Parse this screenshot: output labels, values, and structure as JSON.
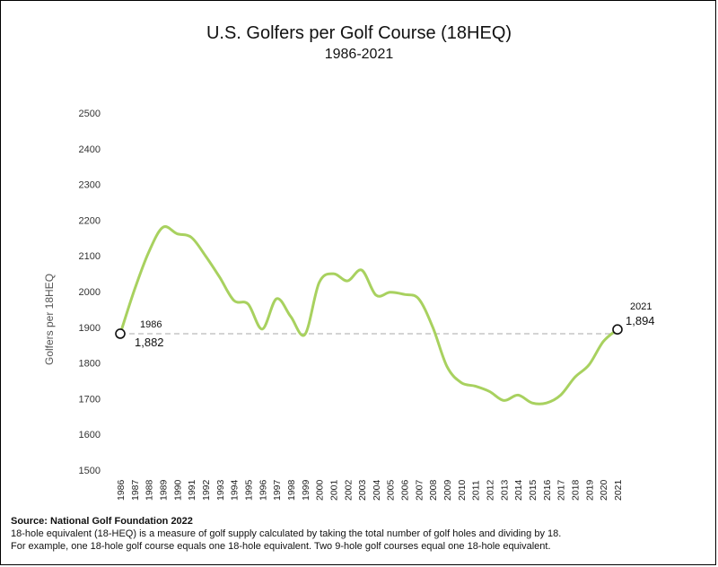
{
  "chart_data": {
    "type": "line",
    "title": "U.S. Golfers per Golf Course (18HEQ)",
    "subtitle": "1986-2021",
    "xlabel": "",
    "ylabel": "Golfers per 18HEQ",
    "ylim": [
      1500,
      2500
    ],
    "yticks": [
      "1500",
      "1600",
      "1700",
      "1800",
      "1900",
      "2000",
      "2100",
      "2200",
      "2300",
      "2400",
      "2500"
    ],
    "grid": false,
    "x": [
      "1986",
      "1987",
      "1988",
      "1989",
      "1990",
      "1991",
      "1992",
      "1993",
      "1994",
      "1995",
      "1996",
      "1997",
      "1998",
      "1999",
      "2000",
      "2001",
      "2002",
      "2003",
      "2004",
      "2005",
      "2006",
      "2007",
      "2008",
      "2009",
      "2010",
      "2011",
      "2012",
      "2013",
      "2014",
      "2015",
      "2016",
      "2017",
      "2018",
      "2019",
      "2020",
      "2021"
    ],
    "series": [
      {
        "values": [
          1882,
          2005,
          2110,
          2180,
          2162,
          2152,
          2100,
          2040,
          1975,
          1965,
          1895,
          1980,
          1930,
          1880,
          2025,
          2050,
          2030,
          2060,
          1990,
          1998,
          1992,
          1980,
          1900,
          1790,
          1745,
          1735,
          1720,
          1695,
          1710,
          1688,
          1688,
          1710,
          1760,
          1795,
          1860,
          1894
        ],
        "color": "#a8d15f"
      }
    ],
    "reference_line": {
      "value": 1882,
      "style": "dashed",
      "color": "#bbbbbb"
    },
    "annotations": [
      {
        "year": "1986",
        "value": "1,882"
      },
      {
        "year": "2021",
        "value": "1,894"
      }
    ]
  },
  "footer": {
    "source": "Source: National Golf Foundation 2022",
    "note1": "18-hole equivalent (18-HEQ) is a measure of golf supply calculated by taking the total number of golf holes and dividing by 18.",
    "note2": "For example, one 18-hole golf course equals one 18-hole equivalent. Two 9-hole golf courses equal one 18-hole equivalent."
  }
}
